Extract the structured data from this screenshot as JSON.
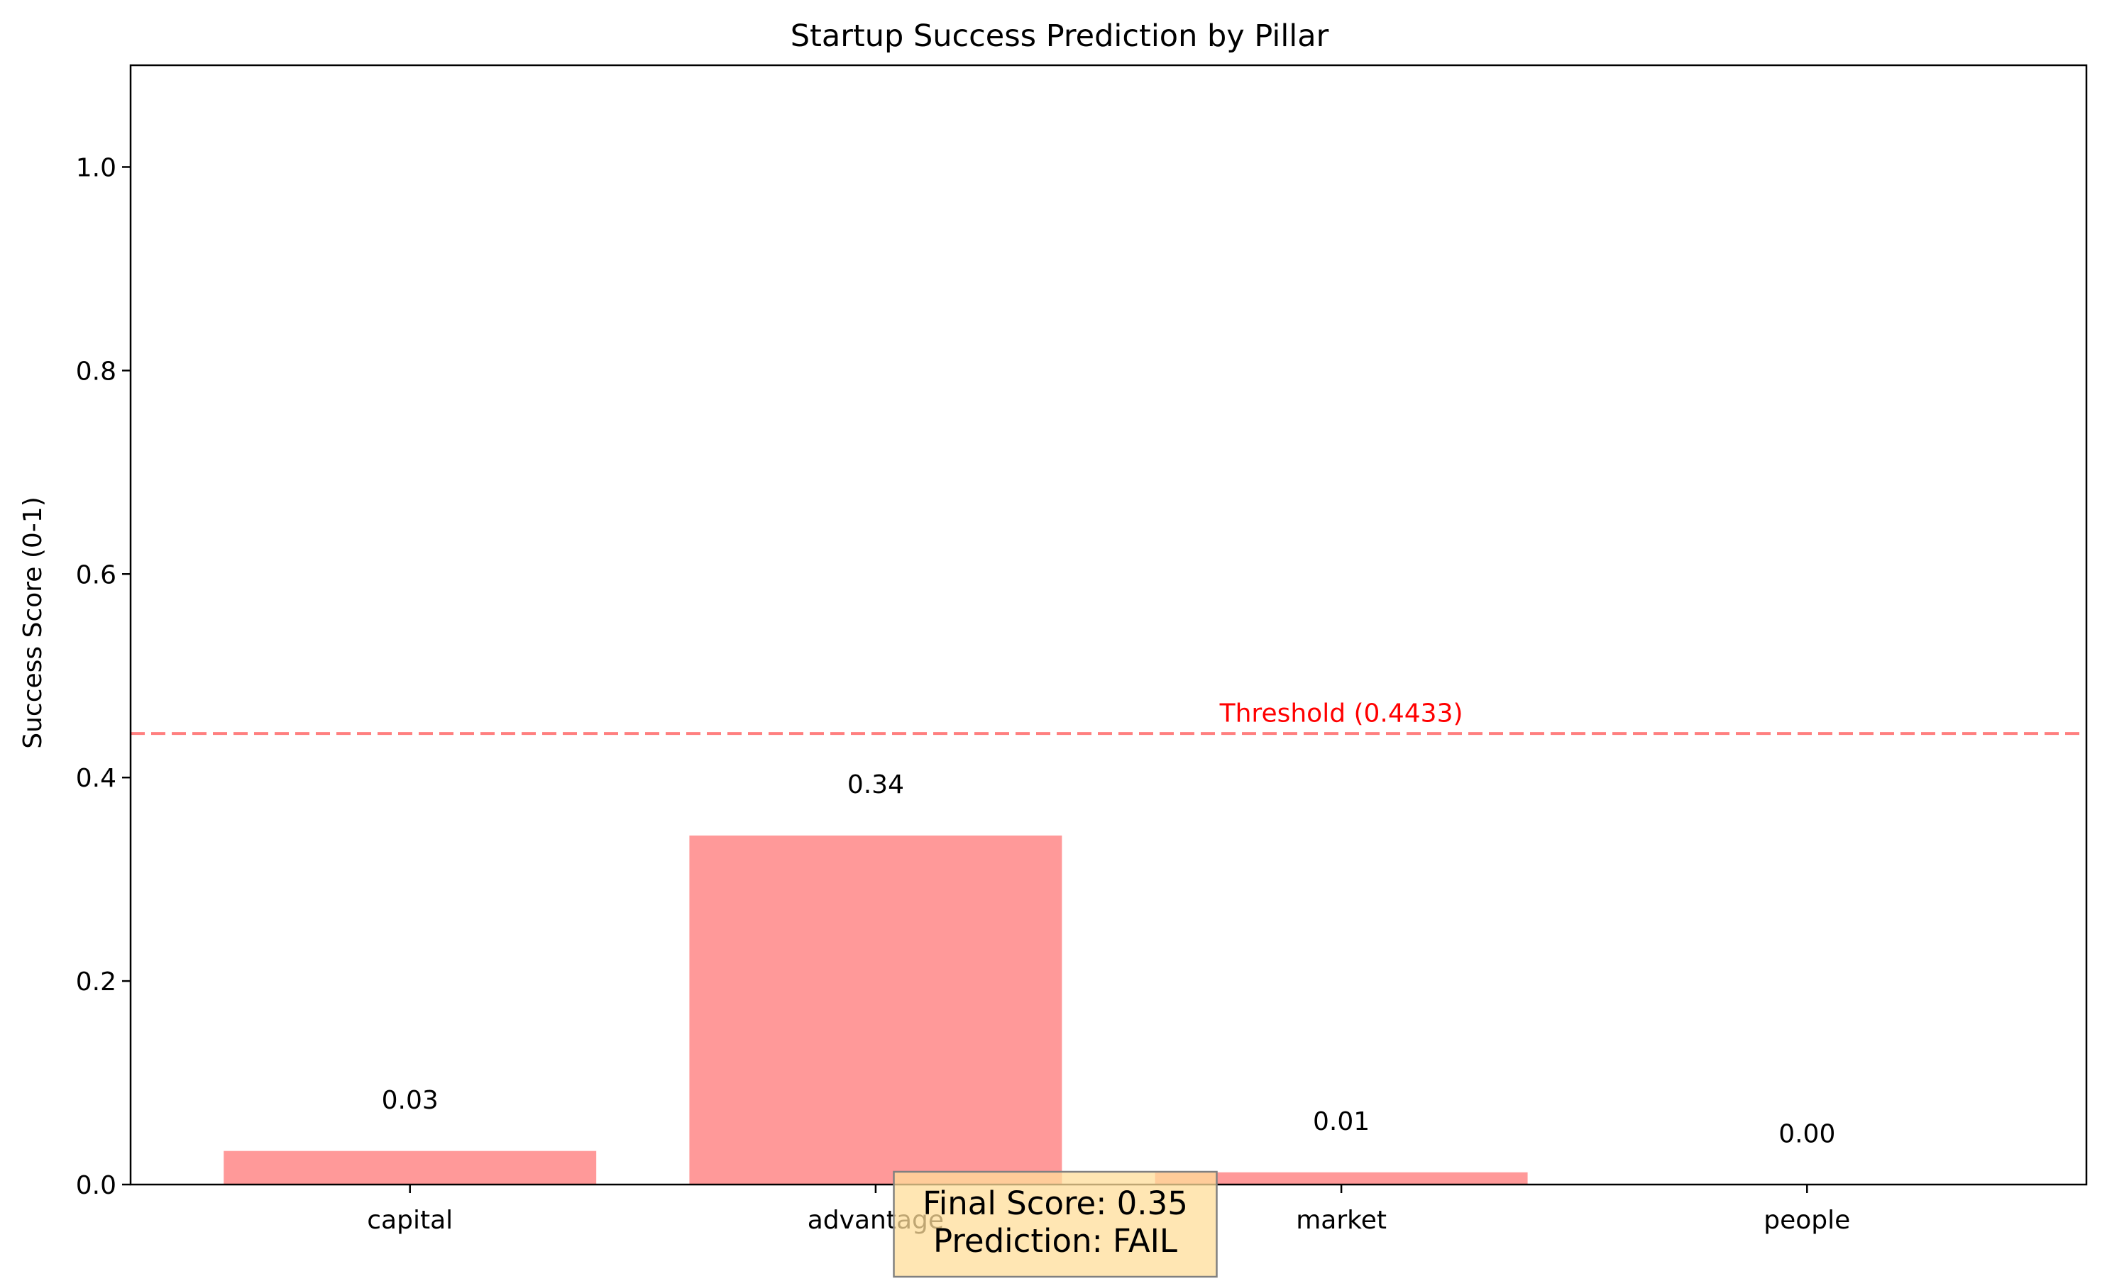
{
  "chart_data": {
    "type": "bar",
    "title": "Startup Success Prediction by Pillar",
    "xlabel": "",
    "ylabel": "Success Score (0-1)",
    "categories": [
      "capital",
      "advantage",
      "market",
      "people"
    ],
    "values": [
      0.033,
      0.343,
      0.012,
      0.0
    ],
    "value_labels": [
      "0.03",
      "0.34",
      "0.01",
      "0.00"
    ],
    "ylim": [
      0,
      1.1
    ],
    "yticks": [
      0.0,
      0.2,
      0.4,
      0.6,
      0.8,
      1.0
    ],
    "ytick_labels": [
      "0.0",
      "0.2",
      "0.4",
      "0.6",
      "0.8",
      "1.0"
    ],
    "bar_color": "#ff9999",
    "grid": false,
    "threshold": {
      "value": 0.4433,
      "label": "Threshold (0.4433)",
      "color": "#ff0000",
      "style": "dashed"
    },
    "summary_box": {
      "lines": [
        "Final Score: 0.35",
        "Prediction: FAIL"
      ],
      "background": "#ffdd99",
      "placement": "bottom-center"
    }
  }
}
